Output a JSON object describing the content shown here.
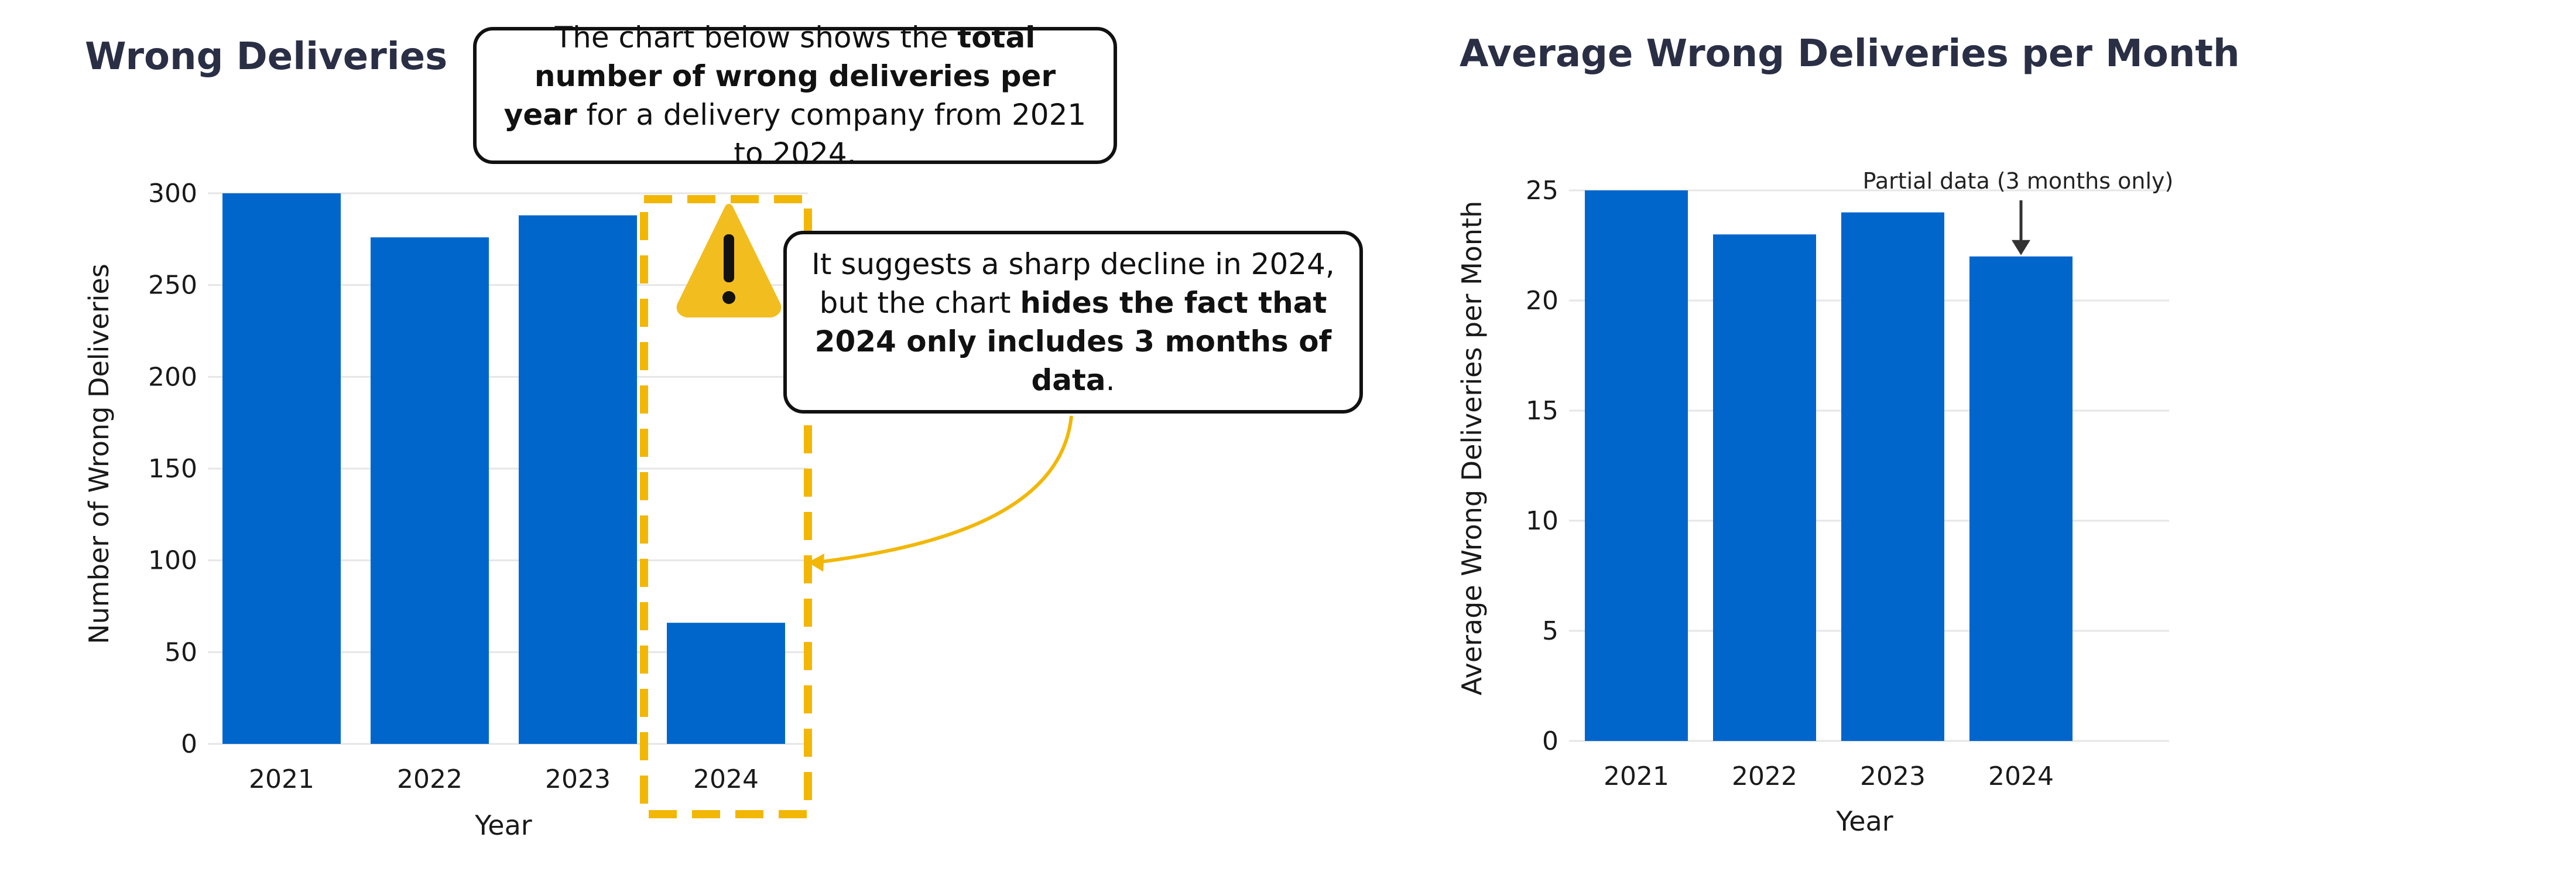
{
  "chart_data": [
    {
      "type": "bar",
      "title": "Wrong Deliveries",
      "xlabel": "Year",
      "ylabel": "Number of Wrong Deliveries",
      "categories": [
        "2021",
        "2022",
        "2023",
        "2024"
      ],
      "values": [
        300,
        276,
        288,
        66
      ],
      "ylim": [
        0,
        300
      ],
      "yticks": [
        "0",
        "50",
        "100",
        "150",
        "200",
        "250",
        "300"
      ],
      "grid": "horizontal",
      "bar_color": "#0066cc",
      "highlight_category": "2024",
      "highlight_color": "#f2b705"
    },
    {
      "type": "bar",
      "title": "Average Wrong Deliveries per Month",
      "xlabel": "Year",
      "ylabel": "Average Wrong Deliveries per Month",
      "categories": [
        "2021",
        "2022",
        "2023",
        "2024"
      ],
      "values": [
        25,
        23,
        24,
        22
      ],
      "ylim": [
        0,
        25
      ],
      "yticks": [
        "0",
        "5",
        "10",
        "15",
        "20",
        "25"
      ],
      "grid": "horizontal",
      "bar_color": "#0066cc",
      "annotation": {
        "text": "Partial data (3 months only)",
        "category": "2024"
      }
    }
  ],
  "callouts": {
    "top": {
      "pre": "The chart below shows the ",
      "bold": "total number of wrong deliveries per year",
      "post": " for a delivery company from 2021 to 2024."
    },
    "right": {
      "pre": "It suggests a sharp decline in 2024, but the chart ",
      "bold": "hides the fact that 2024 only includes 3 months of data",
      "post": "."
    }
  },
  "icons": {
    "warning": "warning-icon",
    "arrow": "curved-arrow-icon"
  }
}
